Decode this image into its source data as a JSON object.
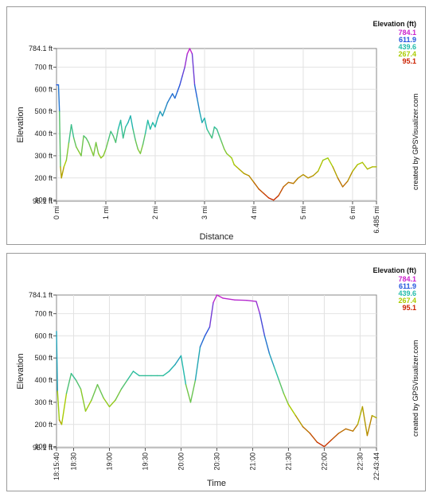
{
  "credit_text": "created by GPSVisualizer.com",
  "legend": {
    "title": "Elevation (ft)",
    "values": [
      "784.1",
      "611.9",
      "439.6",
      "267.4",
      "95.1"
    ],
    "colors": [
      "#cc22cc",
      "#2255dd",
      "#22bbaa",
      "#aacc00",
      "#cc2200"
    ]
  },
  "charts": [
    {
      "id": "distance",
      "y_ticks": [
        "784.1 ft",
        "700 ft",
        "600 ft",
        "500 ft",
        "400 ft",
        "300 ft",
        "200 ft",
        "100 ft",
        "95.1 ft"
      ],
      "x_ticks": [
        "0 mi",
        "1 mi",
        "2 mi",
        "3 mi",
        "4 mi",
        "5 mi",
        "6 mi",
        "6.485 mi"
      ],
      "ylabel": "Elevation",
      "xlabel": "Distance"
    },
    {
      "id": "time",
      "y_ticks": [
        "784.1 ft",
        "700 ft",
        "600 ft",
        "500 ft",
        "400 ft",
        "300 ft",
        "200 ft",
        "100 ft",
        "95.1 ft"
      ],
      "x_ticks": [
        "18:15:40",
        "18:30",
        "19:00",
        "19:30",
        "20:00",
        "20:30",
        "21:00",
        "21:30",
        "22:00",
        "22:30",
        "22:43:44"
      ],
      "ylabel": "Elevation",
      "xlabel": "Time"
    }
  ],
  "chart_data": [
    {
      "type": "line",
      "xlabel": "Distance",
      "ylabel": "Elevation",
      "ylim": [
        95.1,
        784.1
      ],
      "xlim": [
        0,
        6.485
      ],
      "x_unit": "mi",
      "y_unit": "ft",
      "grid": true,
      "legend_position": "top-right",
      "color_scale": [
        "#cc2200",
        "#aacc00",
        "#22bbaa",
        "#2255dd",
        "#cc22cc"
      ],
      "series": [
        {
          "x": [
            0,
            0.02,
            0.04,
            0.06,
            0.08,
            0.1,
            0.15,
            0.2,
            0.25,
            0.3,
            0.35,
            0.4,
            0.45,
            0.5,
            0.55,
            0.6,
            0.65,
            0.7,
            0.75,
            0.8,
            0.85,
            0.9,
            0.95,
            1.0,
            1.05,
            1.1,
            1.15,
            1.2,
            1.25,
            1.3,
            1.35,
            1.4,
            1.45,
            1.5,
            1.55,
            1.6,
            1.65,
            1.7,
            1.75,
            1.8,
            1.85,
            1.9,
            1.95,
            2.0,
            2.05,
            2.1,
            2.15,
            2.2,
            2.25,
            2.3,
            2.35,
            2.4,
            2.45,
            2.5,
            2.55,
            2.6,
            2.65,
            2.7,
            2.75,
            2.8,
            2.85,
            2.9,
            2.95,
            3.0,
            3.05,
            3.1,
            3.15,
            3.2,
            3.25,
            3.3,
            3.35,
            3.4,
            3.45,
            3.5,
            3.55,
            3.6,
            3.65,
            3.7,
            3.8,
            3.9,
            4.0,
            4.1,
            4.2,
            4.3,
            4.4,
            4.5,
            4.6,
            4.7,
            4.8,
            4.9,
            5.0,
            5.1,
            5.2,
            5.3,
            5.4,
            5.5,
            5.6,
            5.7,
            5.8,
            5.9,
            6.0,
            6.1,
            6.2,
            6.3,
            6.35,
            6.4,
            6.485
          ],
          "y": [
            620,
            620,
            620,
            500,
            250,
            200,
            250,
            280,
            360,
            440,
            380,
            340,
            320,
            300,
            390,
            380,
            360,
            330,
            300,
            360,
            310,
            290,
            300,
            330,
            370,
            410,
            390,
            360,
            420,
            460,
            380,
            430,
            450,
            480,
            420,
            370,
            330,
            310,
            350,
            400,
            460,
            420,
            450,
            430,
            470,
            500,
            480,
            510,
            540,
            560,
            580,
            560,
            590,
            620,
            660,
            700,
            760,
            784,
            760,
            620,
            560,
            500,
            450,
            470,
            420,
            400,
            380,
            430,
            420,
            390,
            360,
            330,
            310,
            300,
            290,
            260,
            250,
            240,
            220,
            210,
            180,
            150,
            130,
            110,
            100,
            120,
            160,
            180,
            175,
            200,
            215,
            200,
            210,
            230,
            280,
            290,
            250,
            200,
            160,
            185,
            230,
            260,
            270,
            240,
            245,
            250,
            250
          ]
        }
      ]
    },
    {
      "type": "line",
      "xlabel": "Time",
      "ylabel": "Elevation",
      "ylim": [
        95.1,
        784.1
      ],
      "xlim": [
        "18:15:40",
        "22:43:44"
      ],
      "y_unit": "ft",
      "grid": true,
      "legend_position": "top-right",
      "color_scale": [
        "#cc2200",
        "#aacc00",
        "#22bbaa",
        "#2255dd",
        "#cc22cc"
      ],
      "series": [
        {
          "x": [
            "18:15:40",
            "18:16:30",
            "18:18:00",
            "18:20:00",
            "18:24:00",
            "18:28:00",
            "18:32:00",
            "18:36:00",
            "18:40:00",
            "18:45:00",
            "18:50:00",
            "18:55:00",
            "19:00:00",
            "19:05:00",
            "19:10:00",
            "19:15:00",
            "19:20:00",
            "19:25:00",
            "19:30:00",
            "19:35:00",
            "19:40:00",
            "19:45:00",
            "19:50:00",
            "19:55:00",
            "20:00:00",
            "20:04:00",
            "20:08:00",
            "20:12:00",
            "20:16:00",
            "20:20:00",
            "20:24:00",
            "20:27:00",
            "20:30:00",
            "20:35:00",
            "20:45:00",
            "20:55:00",
            "21:03:00",
            "21:06:00",
            "21:10:00",
            "21:14:00",
            "21:18:00",
            "21:22:00",
            "21:26:00",
            "21:30:00",
            "21:36:00",
            "21:42:00",
            "21:48:00",
            "21:54:00",
            "22:00:00",
            "22:06:00",
            "22:12:00",
            "22:18:00",
            "22:24:00",
            "22:28:00",
            "22:32:00",
            "22:36:00",
            "22:40:00",
            "22:43:44"
          ],
          "y": [
            620,
            350,
            220,
            200,
            340,
            430,
            400,
            360,
            260,
            310,
            380,
            320,
            280,
            310,
            360,
            400,
            440,
            420,
            420,
            420,
            420,
            420,
            440,
            470,
            510,
            380,
            300,
            400,
            550,
            600,
            640,
            750,
            784,
            770,
            762,
            760,
            755,
            700,
            600,
            520,
            460,
            400,
            340,
            290,
            240,
            190,
            160,
            120,
            100,
            130,
            160,
            180,
            170,
            200,
            280,
            150,
            240,
            230
          ]
        }
      ]
    }
  ]
}
